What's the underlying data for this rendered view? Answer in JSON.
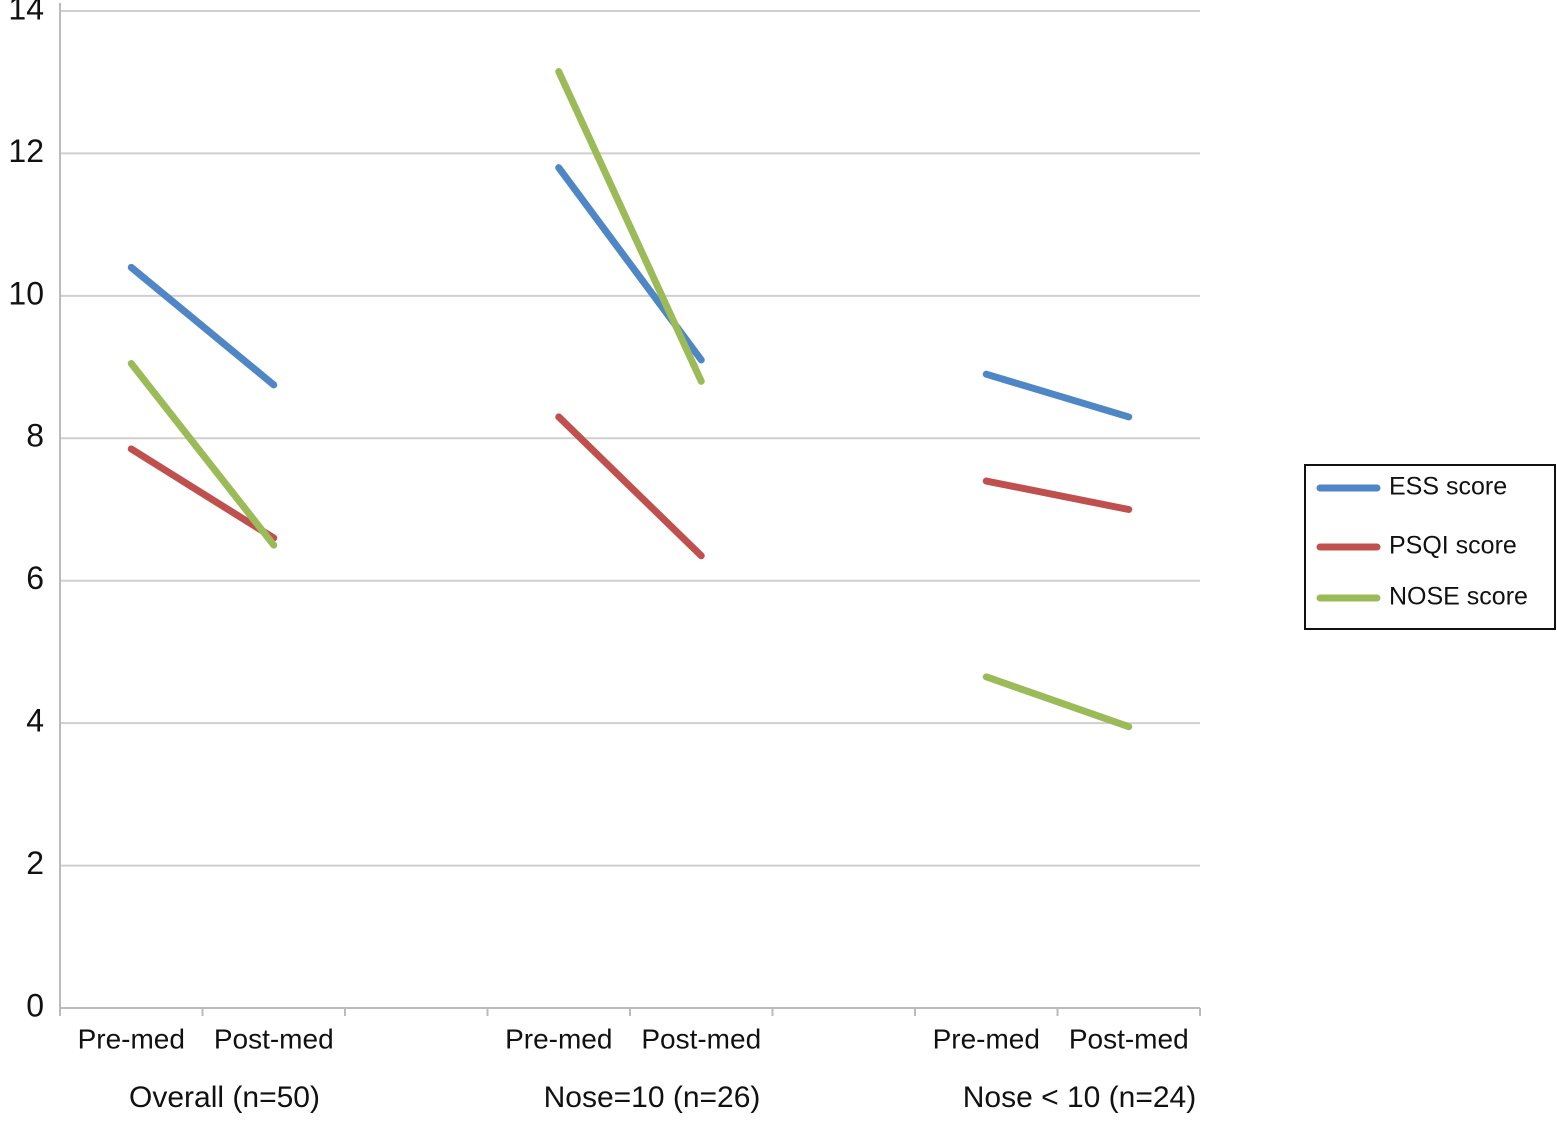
{
  "chart_data": {
    "type": "line",
    "categories": [
      "Pre-med",
      "Post-med",
      null,
      "Pre-med",
      "Post-med",
      null,
      "Pre-med",
      "Post-med"
    ],
    "group_labels": [
      "Overall (n=50)",
      "Nose=10 (n=26)",
      "Nose < 10 (n=24)"
    ],
    "series": [
      {
        "name": "ESS score",
        "color": "#4f86c6",
        "values": [
          10.4,
          8.75,
          null,
          11.8,
          9.1,
          null,
          8.9,
          8.3
        ]
      },
      {
        "name": "PSQI score",
        "color": "#c0504d",
        "values": [
          7.85,
          6.6,
          null,
          8.3,
          6.35,
          null,
          7.4,
          7.0
        ]
      },
      {
        "name": "NOSE score",
        "color": "#9bbb59",
        "values": [
          9.05,
          6.5,
          null,
          13.15,
          8.8,
          null,
          4.65,
          3.95
        ]
      }
    ],
    "ylim": [
      0,
      14
    ],
    "yticks": [
      0,
      2,
      4,
      6,
      8,
      10,
      12,
      14
    ],
    "grid": true,
    "legend": "right"
  }
}
